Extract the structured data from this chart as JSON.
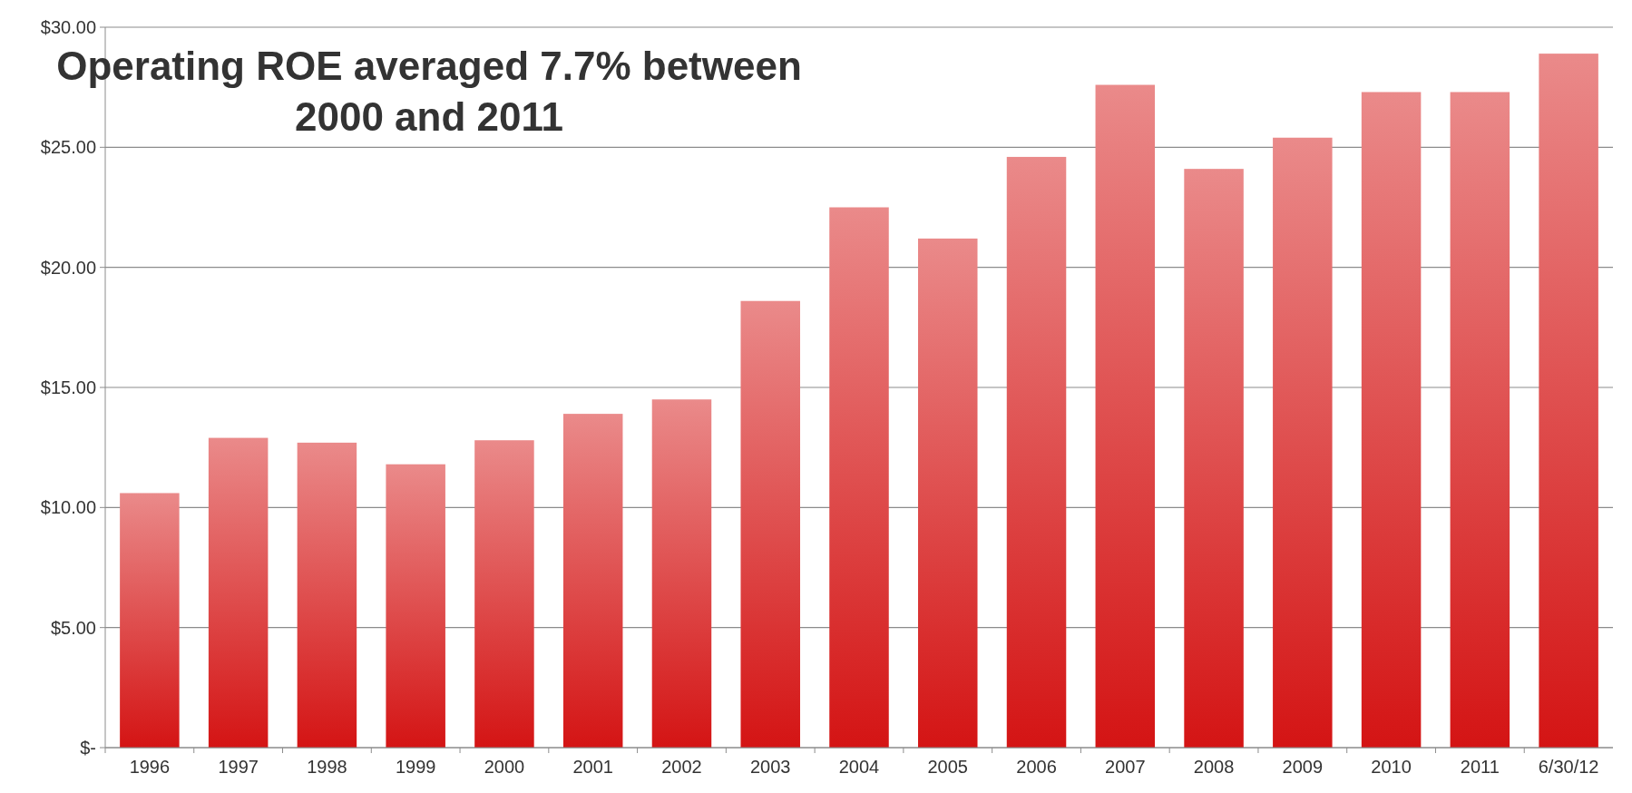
{
  "chart_data": {
    "type": "bar",
    "title": "Operating ROE averaged 7.7% between 2000 and 2011",
    "categories": [
      "1996",
      "1997",
      "1998",
      "1999",
      "2000",
      "2001",
      "2002",
      "2003",
      "2004",
      "2005",
      "2006",
      "2007",
      "2008",
      "2009",
      "2010",
      "2011",
      "6/30/12"
    ],
    "values": [
      10.6,
      12.9,
      12.7,
      11.8,
      12.8,
      13.9,
      14.5,
      18.6,
      22.5,
      21.2,
      24.6,
      27.6,
      24.1,
      25.4,
      27.3,
      27.3,
      28.9
    ],
    "color": "#d41414",
    "ylim": [
      0,
      30
    ],
    "yticks": [
      {
        "value": 0,
        "label": "$-"
      },
      {
        "value": 5,
        "label": "$5.00"
      },
      {
        "value": 10,
        "label": "$10.00"
      },
      {
        "value": 15,
        "label": "$15.00"
      },
      {
        "value": 20,
        "label": "$20.00"
      },
      {
        "value": 25,
        "label": "$25.00"
      },
      {
        "value": 30,
        "label": "$30.00"
      }
    ],
    "grid": "y"
  }
}
